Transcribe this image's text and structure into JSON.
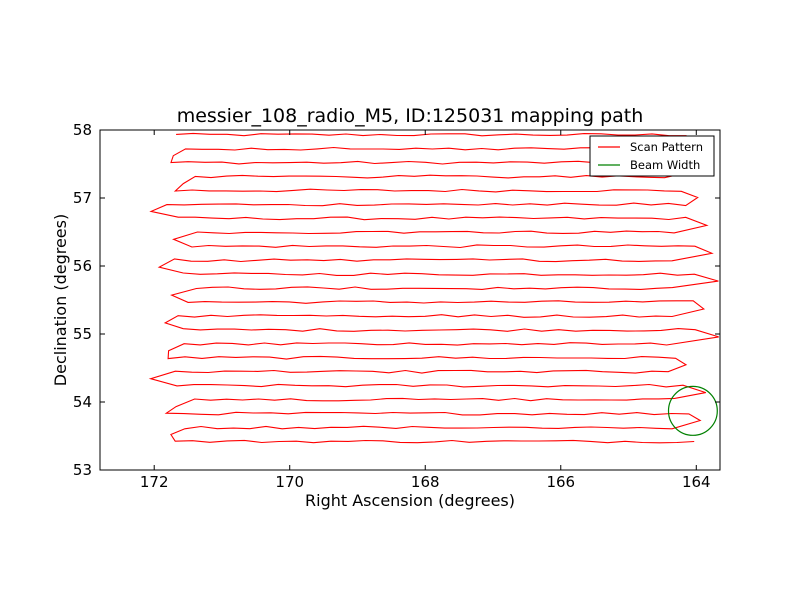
{
  "chart_data": {
    "type": "line",
    "title": "messier_108_radio_M5, ID:125031 mapping path",
    "xlabel": "Right Ascension (degrees)",
    "ylabel": "Declination (degrees)",
    "xlim": [
      172.8,
      163.65
    ],
    "ylim": [
      53,
      58
    ],
    "x_ticks": [
      172,
      170,
      168,
      166,
      164
    ],
    "x_tick_labels": [
      "172",
      "170",
      "168",
      "166",
      "164"
    ],
    "y_ticks": [
      53,
      54,
      55,
      56,
      57,
      58
    ],
    "y_tick_labels": [
      "53",
      "54",
      "55",
      "56",
      "57",
      "58"
    ],
    "grid": false,
    "legend_position": "top-right",
    "legend": [
      {
        "label": "Scan Pattern",
        "color": "#ff0000"
      },
      {
        "label": "Beam Width",
        "color": "#008000"
      }
    ],
    "scan": {
      "color": "#ff0000",
      "dec_start": 57.93,
      "dec_end": 53.42,
      "row_count": 23,
      "ra_left": 171.6,
      "ra_right": 164.25,
      "wiggle_deg": 0.02
    },
    "beam": {
      "ra": 164.05,
      "dec": 53.87,
      "radius_deg": 0.36,
      "color": "#008000"
    }
  }
}
